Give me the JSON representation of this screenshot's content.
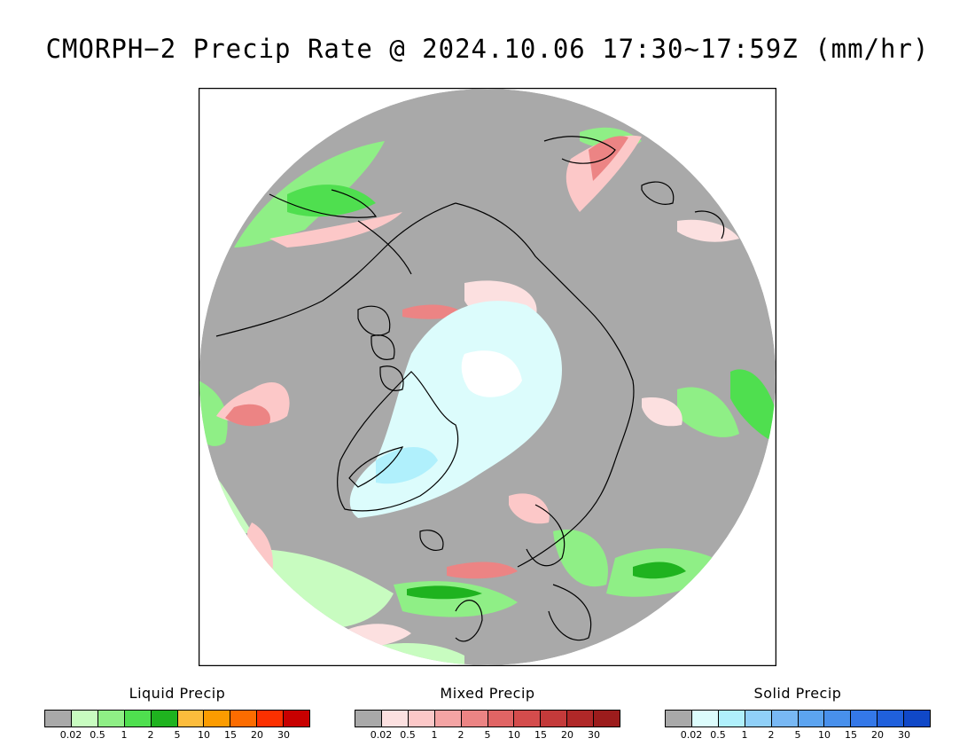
{
  "title": "CMORPH−2 Precip Rate @ 2024.10.06 17:30~17:59Z (mm/hr)",
  "map": {
    "projection": "north-polar-stereographic",
    "background_color": "#a9a9a9",
    "frame_color": "#000000",
    "coast_color": "#000000"
  },
  "legends": [
    {
      "id": "liquid",
      "title": "Liquid Precip",
      "colors": [
        "#a9a9a9",
        "#c8fcc0",
        "#8fef86",
        "#4fdf4f",
        "#1fb31f",
        "#fcbc3c",
        "#fc9c00",
        "#fc6c00",
        "#fc3000",
        "#c80000"
      ],
      "tick_labels": [
        "0.02",
        "0.5",
        "1",
        "2",
        "5",
        "10",
        "15",
        "20",
        "30"
      ]
    },
    {
      "id": "mixed",
      "title": "Mixed Precip",
      "colors": [
        "#a9a9a9",
        "#fce0e0",
        "#fcc8c8",
        "#f4a4a4",
        "#ec8484",
        "#e06464",
        "#d44c4c",
        "#c43a3a",
        "#b02828",
        "#9c1c1c"
      ],
      "tick_labels": [
        "0.02",
        "0.5",
        "1",
        "2",
        "5",
        "10",
        "15",
        "20",
        "30"
      ]
    },
    {
      "id": "solid",
      "title": "Solid Precip",
      "colors": [
        "#a9a9a9",
        "#dcfcfc",
        "#b0f0fc",
        "#90d0f8",
        "#78b8f4",
        "#5ca4f0",
        "#4890ec",
        "#3478e8",
        "#2060dc",
        "#1048c8"
      ],
      "tick_labels": [
        "0.02",
        "0.5",
        "1",
        "2",
        "5",
        "10",
        "15",
        "20",
        "30"
      ]
    }
  ]
}
